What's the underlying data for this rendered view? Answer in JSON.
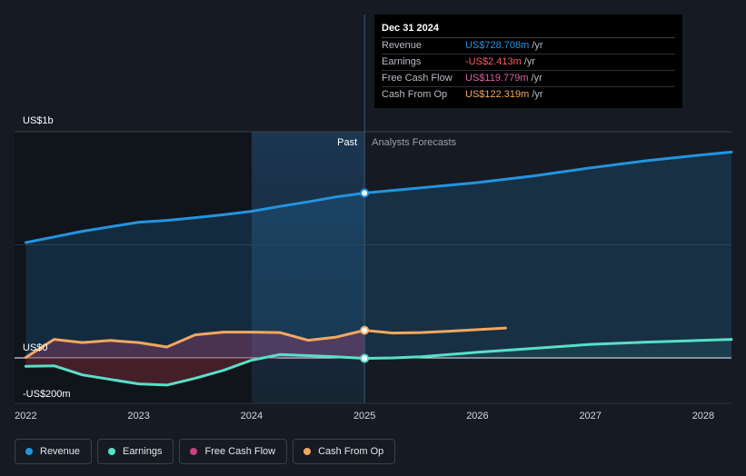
{
  "tooltip": {
    "date": "Dec 31 2024",
    "rows": [
      {
        "name": "Revenue",
        "value": "US$728.708m",
        "unit": "/yr",
        "color": "#2394df"
      },
      {
        "name": "Earnings",
        "value": "-US$2.413m",
        "unit": "/yr",
        "color": "#ff5a5f"
      },
      {
        "name": "Free Cash Flow",
        "value": "US$119.779m",
        "unit": "/yr",
        "color": "#e05fa7"
      },
      {
        "name": "Cash From Op",
        "value": "US$122.319m",
        "unit": "/yr",
        "color": "#f0a860"
      }
    ]
  },
  "legend": [
    {
      "label": "Revenue",
      "color": "#2394df"
    },
    {
      "label": "Earnings",
      "color": "#58dfc8"
    },
    {
      "label": "Free Cash Flow",
      "color": "#c9417f"
    },
    {
      "label": "Cash From Op",
      "color": "#f0a860"
    }
  ],
  "chart_data": {
    "type": "line",
    "past_label": "Past",
    "forecast_label": "Analysts Forecasts",
    "y_tick_labels": [
      "US$1b",
      "US$0",
      "-US$200m"
    ],
    "y_ticks": [
      1000,
      0,
      -200
    ],
    "ylim": [
      -200,
      1000
    ],
    "xlim": [
      2021.9,
      2028.25
    ],
    "x_ticks": [
      2022,
      2023,
      2024,
      2025,
      2026,
      2027,
      2028
    ],
    "x_tick_labels": [
      "2022",
      "2023",
      "2024",
      "2025",
      "2026",
      "2027",
      "2028"
    ],
    "divider_x": 2025.0,
    "highlight_x": [
      2024.0,
      2025.0
    ],
    "grid": true,
    "legend_position": "bottom-left",
    "series": [
      {
        "name": "Revenue",
        "color": "#2394df",
        "area": true,
        "x": [
          2022.0,
          2022.25,
          2022.5,
          2022.75,
          2023.0,
          2023.25,
          2023.5,
          2023.75,
          2024.0,
          2024.25,
          2024.5,
          2024.75,
          2025.0,
          2025.5,
          2026.0,
          2026.5,
          2027.0,
          2027.5,
          2028.0,
          2028.25
        ],
        "y": [
          510,
          535,
          560,
          580,
          600,
          608,
          620,
          633,
          648,
          670,
          690,
          712,
          729,
          752,
          775,
          805,
          840,
          872,
          898,
          910
        ]
      },
      {
        "name": "Earnings",
        "color": "#58dfc8",
        "area": true,
        "x": [
          2022.0,
          2022.25,
          2022.5,
          2022.75,
          2023.0,
          2023.25,
          2023.5,
          2023.75,
          2024.0,
          2024.25,
          2024.5,
          2024.75,
          2025.0,
          2025.25,
          2025.5,
          2025.75,
          2026.0,
          2026.5,
          2027.0,
          2027.5,
          2028.0,
          2028.25
        ],
        "y": [
          -37,
          -35,
          -75,
          -95,
          -115,
          -120,
          -90,
          -55,
          -10,
          15,
          10,
          5,
          -2,
          0,
          5,
          15,
          25,
          42,
          60,
          70,
          78,
          82
        ]
      },
      {
        "name": "Free Cash Flow",
        "color": "#c9417f",
        "area": true,
        "x": [
          2022.0,
          2022.25,
          2022.5,
          2022.75,
          2023.0,
          2023.25,
          2023.5,
          2023.75,
          2024.0,
          2024.25,
          2024.5,
          2024.75,
          2025.0
        ],
        "y": [
          0,
          80,
          66,
          75,
          65,
          45,
          100,
          112,
          112,
          110,
          75,
          90,
          120
        ]
      },
      {
        "name": "Cash From Op",
        "color": "#f0a860",
        "area": false,
        "x": [
          2022.0,
          2022.25,
          2022.5,
          2022.75,
          2023.0,
          2023.25,
          2023.5,
          2023.75,
          2024.0,
          2024.25,
          2024.5,
          2024.75,
          2025.0,
          2025.25,
          2025.5,
          2025.75,
          2026.0,
          2026.25
        ],
        "y": [
          2,
          82,
          68,
          77,
          68,
          48,
          102,
          114,
          114,
          112,
          78,
          92,
          122,
          110,
          112,
          118,
          125,
          132
        ]
      }
    ]
  }
}
